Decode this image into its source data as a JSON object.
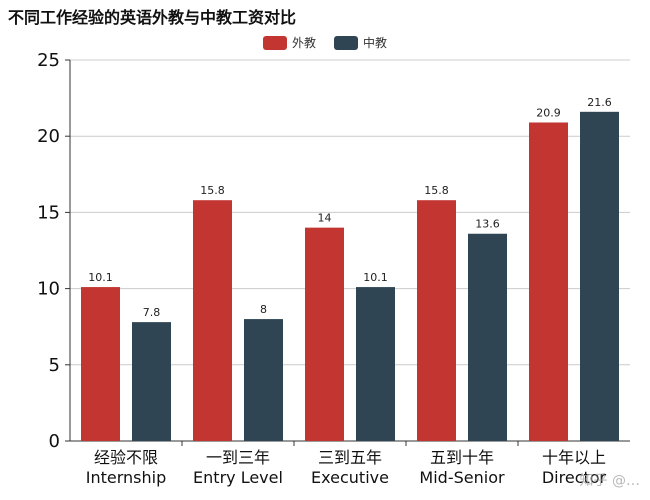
{
  "colors": {
    "foreign": "#c23531",
    "chinese": "#2f4554",
    "grid": "#cccccc",
    "axis": "#333333"
  },
  "watermark": "知乎 @…",
  "chart_data": {
    "type": "bar",
    "title": "不同工作经验的英语外教与中教工资对比",
    "legend_position": "top-center",
    "categories": [
      "经验不限\nInternship",
      "一到三年\nEntry Level",
      "三到五年\nExecutive",
      "五到十年\nMid-Senior",
      "十年以上\nDirector"
    ],
    "series": [
      {
        "name": "外教",
        "values": [
          10.1,
          15.8,
          14,
          15.8,
          20.9
        ]
      },
      {
        "name": "中教",
        "values": [
          7.8,
          8,
          10.1,
          13.6,
          21.6
        ]
      }
    ],
    "ylim": [
      0,
      25
    ],
    "yticks": [
      0,
      5,
      10,
      15,
      20,
      25
    ],
    "grid": true,
    "xlabel": "",
    "ylabel": ""
  }
}
